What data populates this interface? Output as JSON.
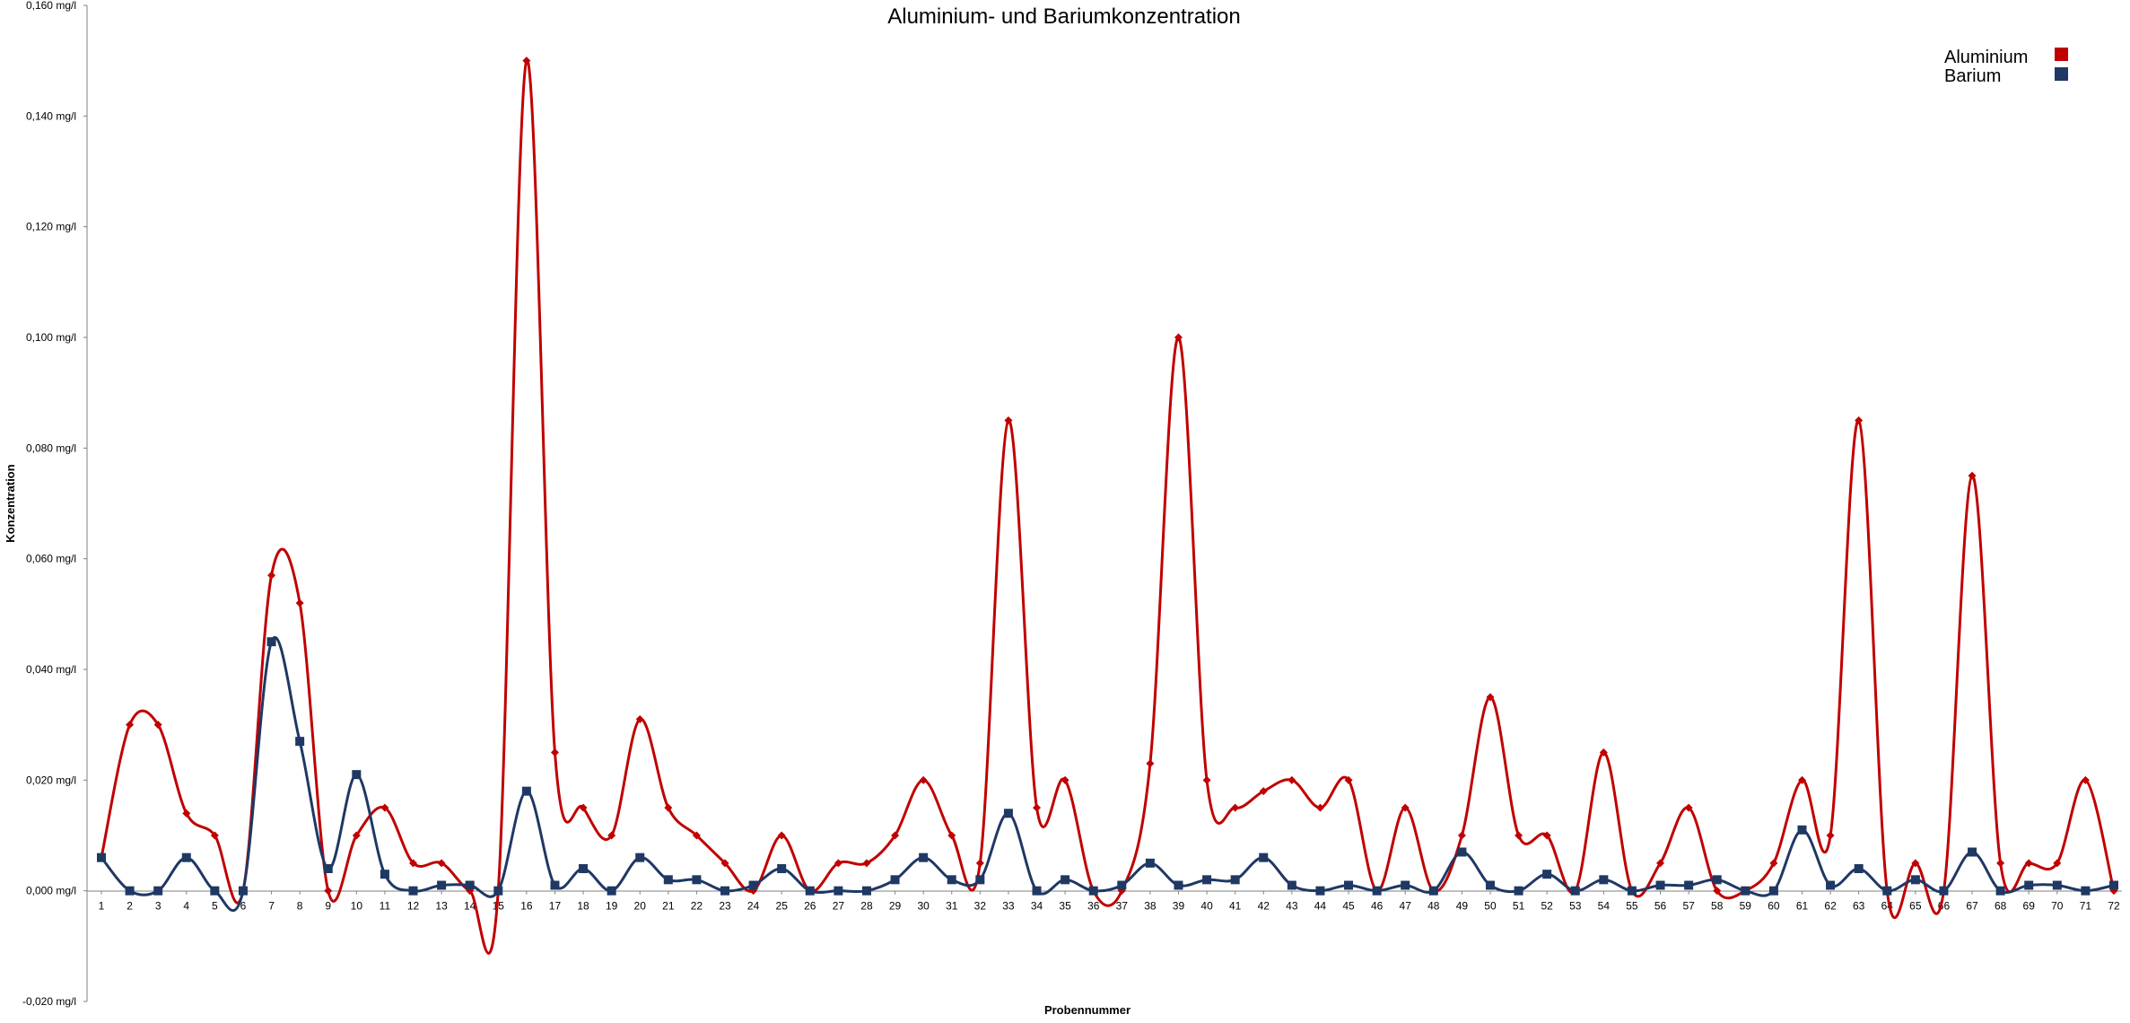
{
  "chart_data": {
    "type": "line",
    "title": "Aluminium- und Bariumkonzentration",
    "xlabel": "Probennummer",
    "ylabel": "Konzentration",
    "ylim": [
      -0.02,
      0.16
    ],
    "y_ticks": [
      -0.02,
      0.0,
      0.02,
      0.04,
      0.06,
      0.08,
      0.1,
      0.12,
      0.14,
      0.16
    ],
    "y_tick_labels": [
      "-0,020 mg/l",
      "0,000 mg/l",
      "0,020 mg/l",
      "0,040 mg/l",
      "0,060 mg/l",
      "0,080 mg/l",
      "0,100 mg/l",
      "0,120 mg/l",
      "0,140 mg/l",
      "0,160 mg/l"
    ],
    "grid": false,
    "smooth": true,
    "legend_position": "top-right",
    "categories": [
      "1",
      "2",
      "3",
      "4",
      "5",
      "6",
      "7",
      "8",
      "9",
      "10",
      "11",
      "12",
      "13",
      "14",
      "15",
      "16",
      "17",
      "18",
      "19",
      "20",
      "21",
      "22",
      "23",
      "24",
      "25",
      "26",
      "27",
      "28",
      "29",
      "30",
      "31",
      "32",
      "33",
      "34",
      "35",
      "36",
      "37",
      "38",
      "39",
      "40",
      "41",
      "42",
      "43",
      "44",
      "45",
      "46",
      "47",
      "48",
      "49",
      "50",
      "51",
      "52",
      "53",
      "54",
      "55",
      "56",
      "57",
      "58",
      "59",
      "60",
      "61",
      "62",
      "63",
      "64",
      "65",
      "66",
      "67",
      "68",
      "69",
      "70",
      "71",
      "72"
    ],
    "series": [
      {
        "name": "Aluminium",
        "color": "#c00000",
        "marker": "diamond",
        "values": [
          0.006,
          0.03,
          0.03,
          0.014,
          0.01,
          0.0,
          0.057,
          0.052,
          0.0,
          0.01,
          0.015,
          0.005,
          0.005,
          0.0,
          0.0,
          0.15,
          0.025,
          0.015,
          0.01,
          0.031,
          0.015,
          0.01,
          0.005,
          0.0,
          0.01,
          0.0,
          0.005,
          0.005,
          0.01,
          0.02,
          0.01,
          0.005,
          0.085,
          0.015,
          0.02,
          0.0,
          0.0,
          0.023,
          0.1,
          0.02,
          0.015,
          0.018,
          0.02,
          0.015,
          0.02,
          0.0,
          0.015,
          0.0,
          0.01,
          0.035,
          0.01,
          0.01,
          0.0,
          0.025,
          0.0,
          0.005,
          0.015,
          0.0,
          0.0,
          0.005,
          0.02,
          0.01,
          0.085,
          0.0,
          0.005,
          0.0,
          0.075,
          0.005,
          0.005,
          0.005,
          0.02,
          0.0
        ]
      },
      {
        "name": "Barium",
        "color": "#1f3864",
        "marker": "square",
        "values": [
          0.006,
          0.0,
          0.0,
          0.006,
          0.0,
          0.0,
          0.045,
          0.027,
          0.004,
          0.021,
          0.003,
          0.0,
          0.001,
          0.001,
          0.0,
          0.018,
          0.001,
          0.004,
          0.0,
          0.006,
          0.002,
          0.002,
          0.0,
          0.001,
          0.004,
          0.0,
          0.0,
          0.0,
          0.002,
          0.006,
          0.002,
          0.002,
          0.014,
          0.0,
          0.002,
          0.0,
          0.001,
          0.005,
          0.001,
          0.002,
          0.002,
          0.006,
          0.001,
          0.0,
          0.001,
          0.0,
          0.001,
          0.0,
          0.007,
          0.001,
          0.0,
          0.003,
          0.0,
          0.002,
          0.0,
          0.001,
          0.001,
          0.002,
          0.0,
          0.0,
          0.011,
          0.001,
          0.004,
          0.0,
          0.002,
          0.0,
          0.007,
          0.0,
          0.001,
          0.001,
          0.0,
          0.001
        ]
      }
    ]
  }
}
